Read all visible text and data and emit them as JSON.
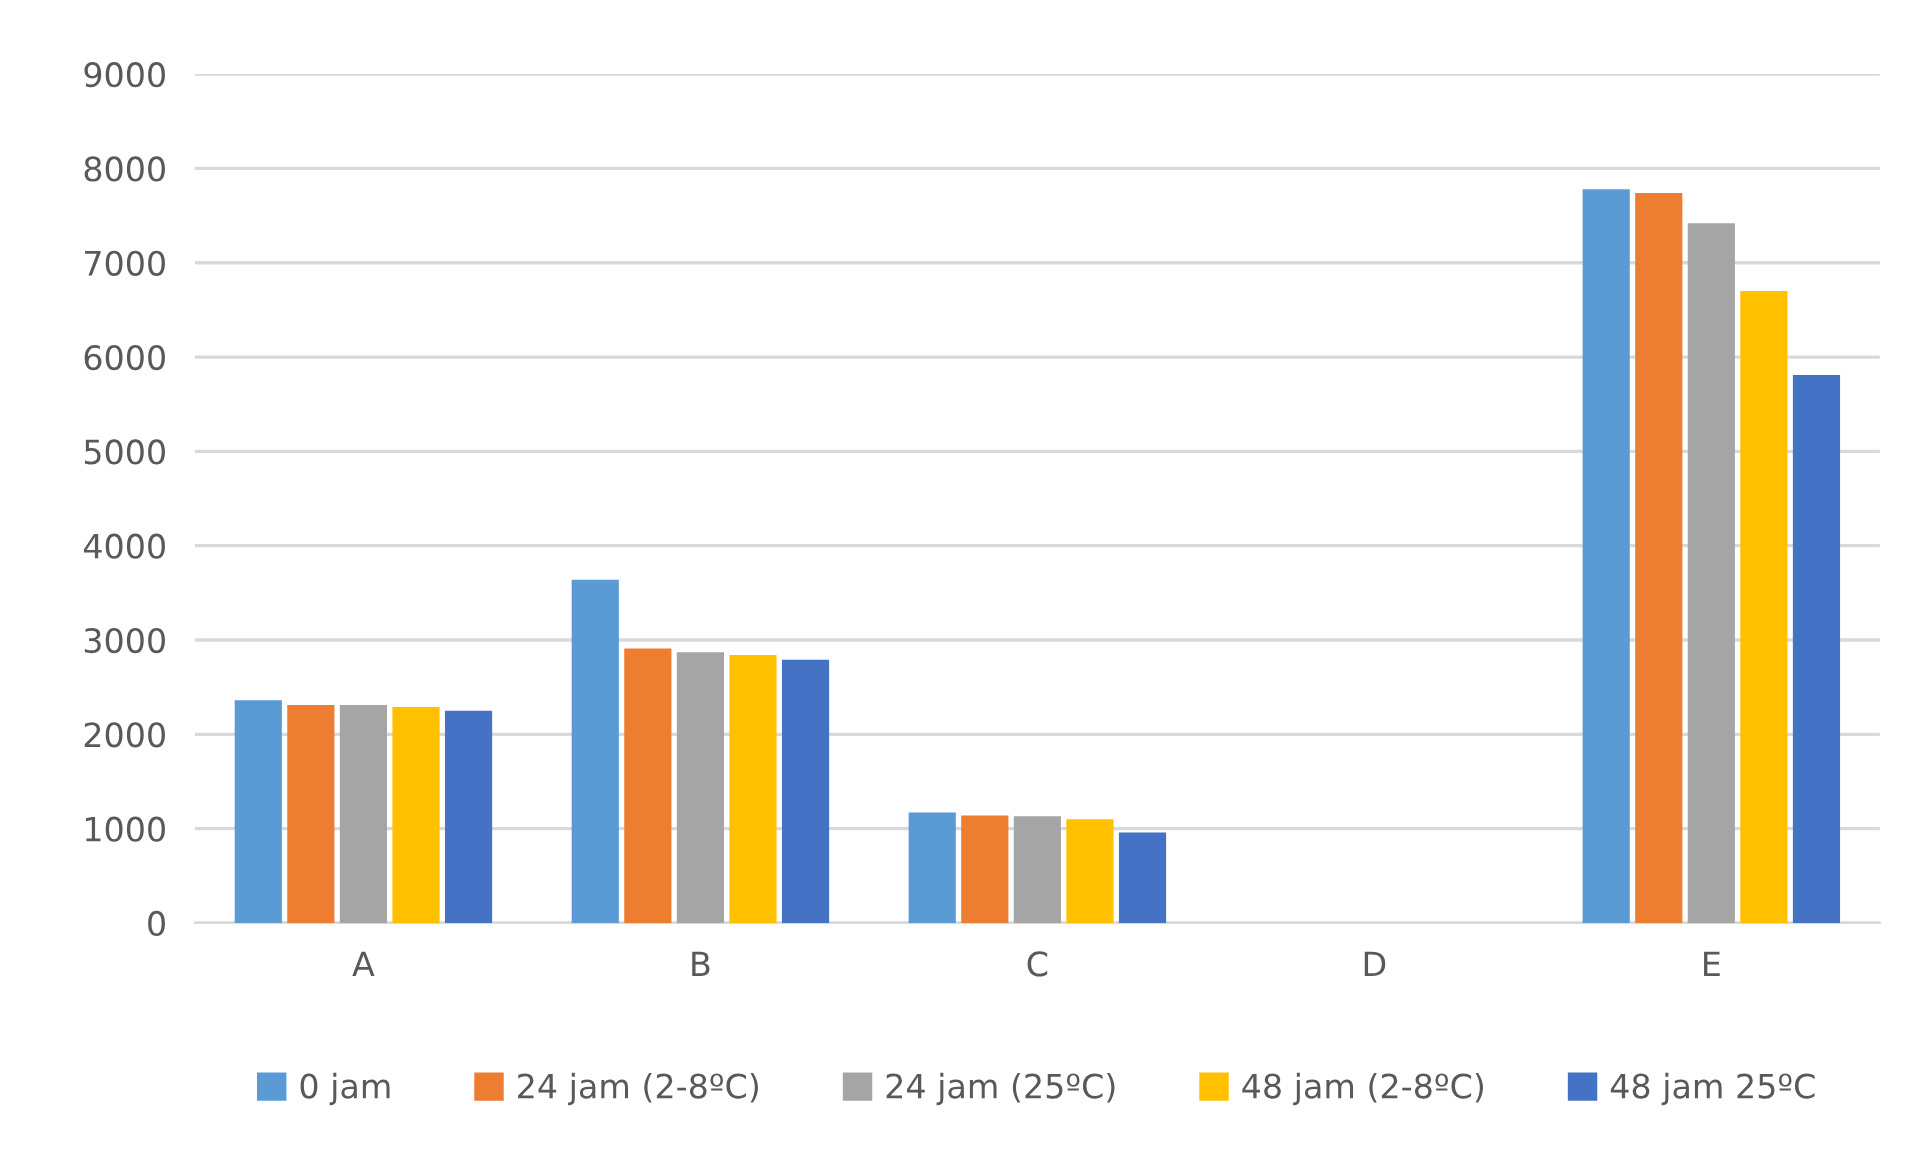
{
  "chart_data": {
    "type": "bar",
    "categories": [
      "A",
      "B",
      "C",
      "D",
      "E"
    ],
    "series": [
      {
        "name": "0 jam",
        "color": "#5b9bd5",
        "values": [
          2360,
          3640,
          1170,
          0,
          7780
        ]
      },
      {
        "name": "24 jam (2-8ºC)",
        "color": "#ed7d31",
        "values": [
          2310,
          2910,
          1140,
          0,
          7740
        ]
      },
      {
        "name": "24 jam (25ºC)",
        "color": "#a5a5a5",
        "values": [
          2310,
          2870,
          1130,
          0,
          7420
        ]
      },
      {
        "name": "48 jam (2-8ºC)",
        "color": "#ffc000",
        "values": [
          2290,
          2840,
          1100,
          0,
          6700
        ]
      },
      {
        "name": "48 jam 25ºC",
        "color": "#4472c4",
        "values": [
          2250,
          2790,
          960,
          0,
          5810
        ]
      }
    ],
    "ylim": [
      0,
      9000
    ],
    "yticks": [
      0,
      1000,
      2000,
      3000,
      4000,
      5000,
      6000,
      7000,
      8000,
      9000
    ],
    "grid": "y",
    "legend": "bottom"
  }
}
